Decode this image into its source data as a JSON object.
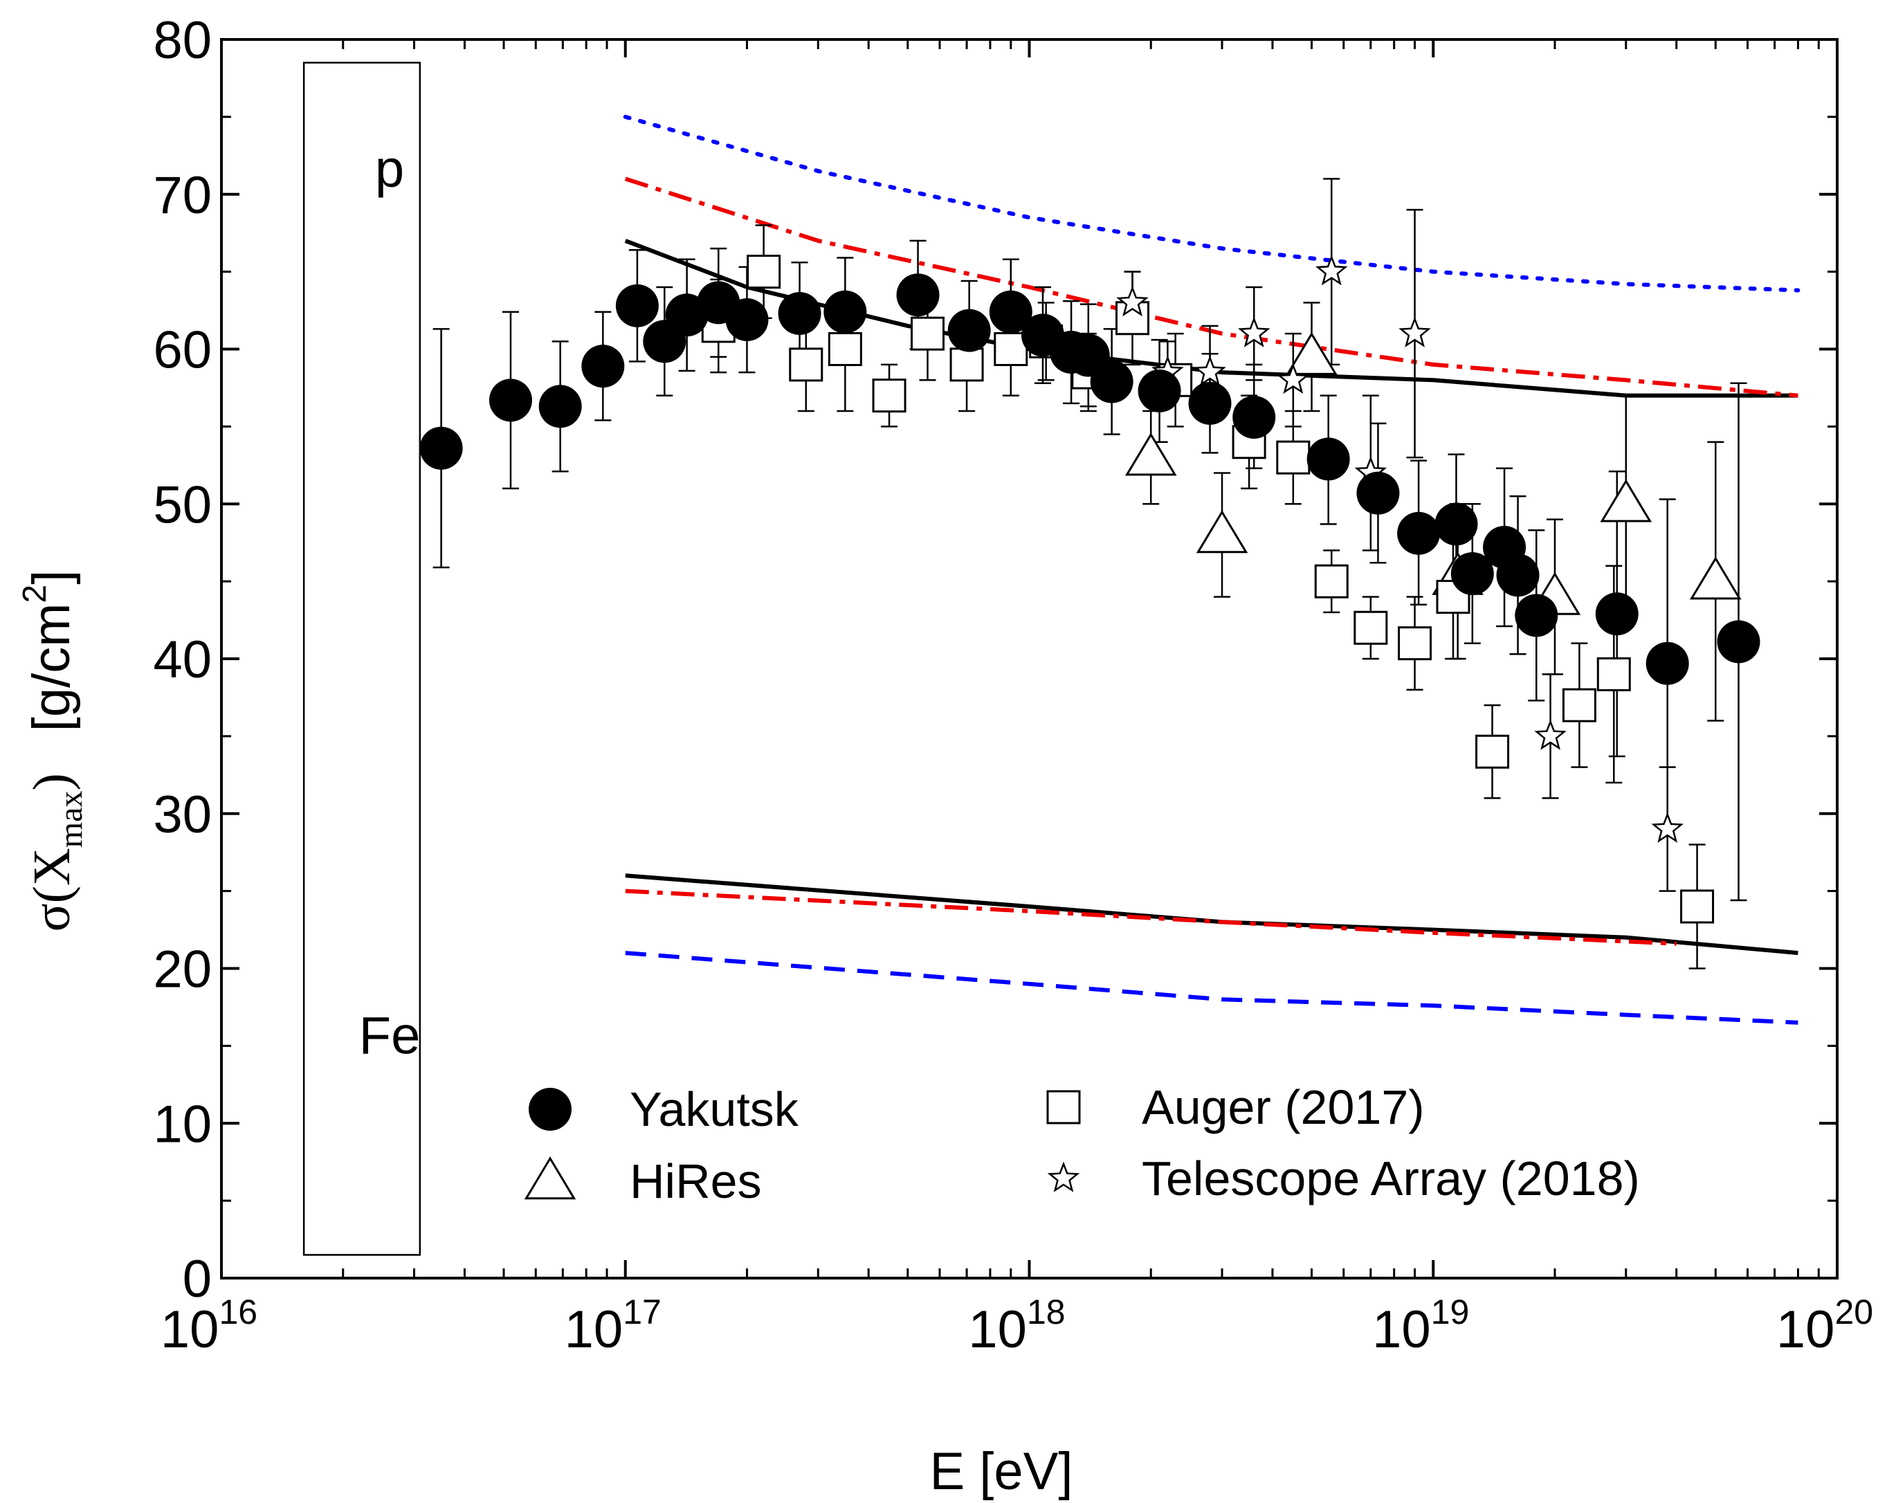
{
  "chart_data": {
    "type": "scatter",
    "title": "",
    "xlabel": "E   [eV]",
    "ylabel": {
      "sigma": "σ(X",
      "sub": "max",
      "close": ")",
      "unit": "[g/cm",
      "sup": "2",
      "unit_close": "]"
    },
    "xscale": "log",
    "xlim": [
      1e+16,
      1e+20
    ],
    "ylim": [
      0,
      80
    ],
    "x_ticks": [
      {
        "base": "10",
        "exp": "16"
      },
      {
        "base": "10",
        "exp": "17"
      },
      {
        "base": "10",
        "exp": "18"
      },
      {
        "base": "10",
        "exp": "19"
      },
      {
        "base": "10",
        "exp": "20"
      }
    ],
    "y_ticks": [
      "0",
      "10",
      "20",
      "30",
      "40",
      "50",
      "60",
      "70",
      "80"
    ],
    "reference_box": {
      "x_range": [
        1.6e+16,
        3.1e+16
      ],
      "y_range": [
        1.5,
        78.5
      ],
      "top_label": "p",
      "bottom_label": "Fe"
    },
    "legend": [
      {
        "label": "Yakutsk",
        "marker": "filled-circle"
      },
      {
        "label": "HiRes",
        "marker": "open-triangle"
      },
      {
        "label": "Auger (2017)",
        "marker": "open-square"
      },
      {
        "label": "Telescope Array (2018)",
        "marker": "open-star"
      }
    ],
    "curves": [
      {
        "name": "proton-model-solid",
        "style": "solid",
        "color": "#000000",
        "points": [
          [
            1e+17,
            67
          ],
          [
            2e+17,
            64
          ],
          [
            5e+17,
            61.5
          ],
          [
            1e+18,
            60
          ],
          [
            3e+18,
            58.5
          ],
          [
            1e+19,
            58
          ],
          [
            3e+19,
            57
          ],
          [
            8e+19,
            57
          ]
        ]
      },
      {
        "name": "proton-model-dashdot",
        "style": "dashdot",
        "color": "#ee0000",
        "points": [
          [
            1e+17,
            71
          ],
          [
            3e+17,
            67
          ],
          [
            1e+18,
            64
          ],
          [
            3e+18,
            61
          ],
          [
            1e+19,
            59
          ],
          [
            3e+19,
            58
          ],
          [
            8e+19,
            57
          ]
        ]
      },
      {
        "name": "proton-model-dotted",
        "style": "dotted",
        "color": "#0000ff",
        "points": [
          [
            1e+17,
            75
          ],
          [
            3e+17,
            71.5
          ],
          [
            1e+18,
            68.5
          ],
          [
            3e+18,
            66.5
          ],
          [
            1e+19,
            65
          ],
          [
            3e+19,
            64.2
          ],
          [
            8e+19,
            63.8
          ]
        ]
      },
      {
        "name": "iron-model-solid",
        "style": "solid",
        "color": "#000000",
        "points": [
          [
            1e+17,
            26
          ],
          [
            1e+18,
            24
          ],
          [
            3e+18,
            23
          ],
          [
            1e+19,
            22.5
          ],
          [
            3e+19,
            22
          ],
          [
            8e+19,
            21
          ]
        ]
      },
      {
        "name": "iron-model-dashdot",
        "style": "dashdot",
        "color": "#ee0000",
        "points": [
          [
            1e+17,
            25
          ],
          [
            1e+18,
            23.7
          ],
          [
            3e+18,
            23
          ],
          [
            1e+19,
            22.3
          ],
          [
            4e+19,
            21.6
          ]
        ]
      },
      {
        "name": "iron-model-dashed",
        "style": "dashed",
        "color": "#0000ff",
        "points": [
          [
            1e+17,
            21
          ],
          [
            1e+18,
            19
          ],
          [
            3e+18,
            18
          ],
          [
            1e+19,
            17.6
          ],
          [
            3e+19,
            17
          ],
          [
            8e+19,
            16.5
          ]
        ]
      }
    ],
    "series": [
      {
        "name": "Yakutsk",
        "marker": "filled-circle",
        "points": [
          [
            3.5e+16,
            53.6,
            45.9,
            61.3
          ],
          [
            5.2e+16,
            56.7,
            51,
            62.4
          ],
          [
            6.9e+16,
            56.3,
            52.1,
            60.5
          ],
          [
            8.8e+16,
            58.9,
            55.4,
            62.4
          ],
          [
            1.07e+17,
            62.8,
            59.2,
            66.4
          ],
          [
            1.25e+17,
            60.5,
            57,
            64
          ],
          [
            1.42e+17,
            62.2,
            58.6,
            65.8
          ],
          [
            1.7e+17,
            63,
            59.5,
            66.5
          ],
          [
            2e+17,
            61.9,
            58.5,
            65.3
          ],
          [
            2.7e+17,
            62.3,
            59,
            65.6
          ],
          [
            3.5e+17,
            62.4,
            59,
            65.9
          ],
          [
            5.3e+17,
            63.5,
            60,
            67
          ],
          [
            7.1e+17,
            61.2,
            58,
            64.4
          ],
          [
            9e+17,
            62.4,
            59,
            65.8
          ],
          [
            1.08e+18,
            60.9,
            57.8,
            64
          ],
          [
            1.27e+18,
            59.8,
            56.5,
            63.1
          ],
          [
            1.4e+18,
            59.6,
            56.3,
            62.9
          ],
          [
            1.6e+18,
            57.9,
            54.5,
            61.3
          ],
          [
            2.1e+18,
            57.3,
            54,
            60.6
          ],
          [
            2.8e+18,
            56.5,
            53.3,
            59.7
          ],
          [
            3.6e+18,
            55.6,
            52.3,
            59
          ],
          [
            5.5e+18,
            52.9,
            48.7,
            57
          ],
          [
            7.3e+18,
            50.7,
            46.2,
            55.2
          ],
          [
            9.2e+18,
            48.1,
            43.5,
            52.8
          ],
          [
            1.14e+19,
            48.7,
            44.2,
            53.2
          ],
          [
            1.25e+19,
            45.5,
            41,
            50
          ],
          [
            1.5e+19,
            47.2,
            42.1,
            52.3
          ],
          [
            1.62e+19,
            45.4,
            40.3,
            50.5
          ],
          [
            1.8e+19,
            42.8,
            37.3,
            48.3
          ],
          [
            2.85e+19,
            42.9,
            33.7,
            52.1
          ],
          [
            3.8e+19,
            39.7,
            29.1,
            50.3
          ],
          [
            5.7e+19,
            41.1,
            24.4,
            57.8
          ]
        ]
      },
      {
        "name": "HiRes",
        "marker": "open-triangle",
        "points": [
          [
            2e+18,
            53,
            50,
            56
          ],
          [
            3e+18,
            48,
            44,
            52
          ],
          [
            5e+18,
            59.5,
            56,
            63
          ],
          [
            1.15e+19,
            45.3,
            40,
            50
          ],
          [
            2e+19,
            44,
            39,
            49
          ],
          [
            3e+19,
            50,
            43,
            57
          ],
          [
            5e+19,
            45,
            36,
            54
          ]
        ]
      },
      {
        "name": "Auger (2017)",
        "marker": "open-square",
        "points": [
          [
            1.7e+17,
            61.5,
            58.5,
            64.5
          ],
          [
            2.2e+17,
            65,
            62,
            68
          ],
          [
            2.8e+17,
            59,
            56,
            62
          ],
          [
            3.5e+17,
            60,
            56,
            63
          ],
          [
            4.5e+17,
            57,
            55,
            59
          ],
          [
            5.6e+17,
            61,
            58,
            64
          ],
          [
            7e+17,
            59,
            56,
            62
          ],
          [
            9e+17,
            60,
            57,
            63
          ],
          [
            1.1e+18,
            60.5,
            58,
            63
          ],
          [
            1.4e+18,
            58.5,
            56,
            61
          ],
          [
            1.8e+18,
            62,
            59,
            65
          ],
          [
            2.3e+18,
            58,
            55,
            61
          ],
          [
            3.5e+18,
            54,
            51,
            57
          ],
          [
            4.5e+18,
            53,
            50,
            56
          ],
          [
            5.6e+18,
            45,
            43,
            47
          ],
          [
            7e+18,
            42,
            40,
            44
          ],
          [
            9e+18,
            41,
            38,
            44
          ],
          [
            1.12e+19,
            44,
            40,
            48
          ],
          [
            1.4e+19,
            34,
            31,
            37
          ],
          [
            2.3e+19,
            37,
            33,
            41
          ],
          [
            2.8e+19,
            39,
            32,
            46
          ],
          [
            4.5e+19,
            24,
            20,
            28
          ]
        ]
      },
      {
        "name": "Telescope Array (2018)",
        "marker": "open-star",
        "points": [
          [
            1.8e+18,
            63,
            61,
            65
          ],
          [
            2.2e+18,
            58.5,
            56.5,
            60.5
          ],
          [
            2.8e+18,
            58.5,
            55.5,
            61.5
          ],
          [
            3.6e+18,
            61,
            58,
            64
          ],
          [
            4.5e+18,
            58,
            55,
            61
          ],
          [
            5.6e+18,
            65,
            59,
            71
          ],
          [
            7e+18,
            52,
            47,
            57
          ],
          [
            9e+18,
            61,
            53,
            69
          ],
          [
            1.95e+19,
            35,
            31,
            39
          ],
          [
            3.8e+19,
            29,
            25,
            33
          ]
        ]
      }
    ]
  }
}
